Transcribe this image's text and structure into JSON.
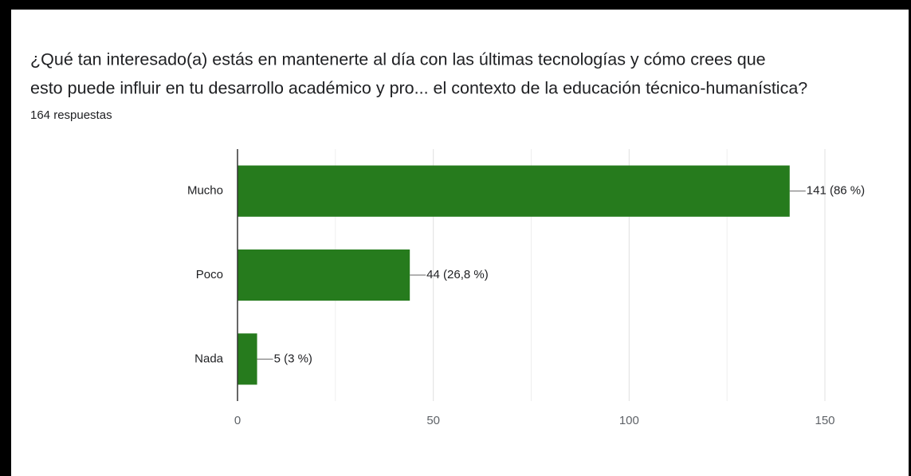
{
  "chart_data": {
    "type": "hbar",
    "title": [
      "¿Qué tan interesado(a) estás en mantenerte al día con las últimas tecnologías y cómo crees que",
      "esto puede influir en tu desarrollo académico y pro... el contexto de la educación técnico-humanística?"
    ],
    "subtitle": "164 respuestas",
    "categories": [
      "Mucho",
      "Poco",
      "Nada"
    ],
    "values": [
      141,
      44,
      5
    ],
    "value_labels": [
      "141 (86 %)",
      "44 (26,8 %)",
      "5 (3 %)"
    ],
    "color": "#267b1d",
    "xlim": [
      0,
      150
    ],
    "xticks": [
      0,
      50,
      100,
      150
    ],
    "minor_xticks": [
      25,
      75,
      125
    ],
    "grid": true
  }
}
